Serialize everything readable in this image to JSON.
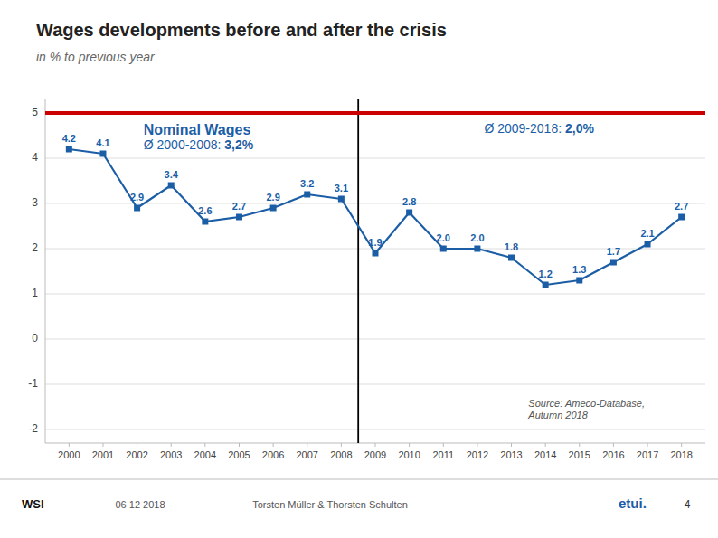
{
  "chart_data": {
    "type": "line",
    "title": "Wages developments before and after the crisis",
    "subtitle": "in % to previous year",
    "x": [
      2000,
      2001,
      2002,
      2003,
      2004,
      2005,
      2006,
      2007,
      2008,
      2009,
      2010,
      2011,
      2012,
      2013,
      2014,
      2015,
      2016,
      2017,
      2018
    ],
    "values": [
      4.2,
      4.1,
      2.9,
      3.4,
      2.6,
      2.7,
      2.9,
      3.2,
      3.1,
      1.9,
      2.8,
      2.0,
      2.0,
      1.8,
      1.2,
      1.3,
      1.7,
      2.1,
      2.7
    ],
    "value_labels": [
      "4.2",
      "4.1",
      "2.9",
      "3.4",
      "2.6",
      "2.7",
      "2.9",
      "3.2",
      "3.1",
      "1.9",
      "2.8",
      "2.0",
      "2.0",
      "1.8",
      "1.2",
      "1.3",
      "1.7",
      "2.1",
      "2.7"
    ],
    "color": "#1B5EA6",
    "marker": "square",
    "data_labels": true,
    "xlim": [
      1999.3,
      2018.7
    ],
    "xticks": [
      2000,
      2001,
      2002,
      2003,
      2004,
      2005,
      2006,
      2007,
      2008,
      2009,
      2010,
      2011,
      2012,
      2013,
      2014,
      2015,
      2016,
      2017,
      2018
    ],
    "ylim": [
      -2.3,
      5.3
    ],
    "yticks": [
      -2,
      -1,
      0,
      1,
      2,
      3,
      4,
      5
    ],
    "grid": true,
    "vlines": [
      {
        "x": 2008.5
      }
    ],
    "hlines": [
      {
        "y": 5.0,
        "color": "#CC0000"
      }
    ],
    "annotations": [
      {
        "text": "Nominal Wages"
      },
      {
        "text": "Ø 2000-2008: ",
        "value_label": "3,2%"
      },
      {
        "text": "Ø 2009-2018: ",
        "value_label": "2,0%"
      }
    ],
    "source": "Source: Ameco-Database,\nAutumn 2018",
    "footer": {
      "brand": "WSI",
      "date": "06 12 2018",
      "author": "Torsten Müller & Thorsten Schulten",
      "logo": "etui.",
      "page": "4"
    }
  }
}
